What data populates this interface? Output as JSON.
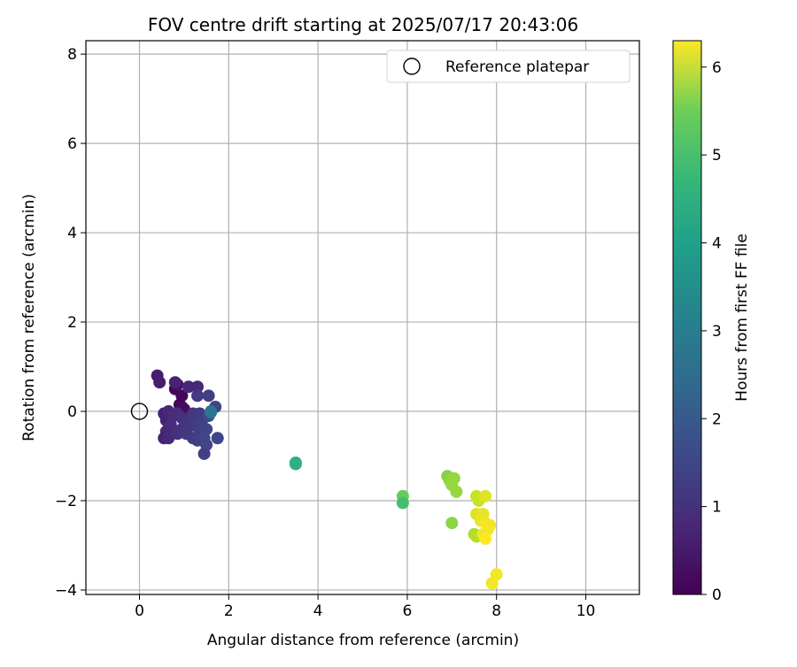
{
  "chart_data": {
    "type": "scatter",
    "title": "FOV centre drift starting at 2025/07/17 20:43:06",
    "xlabel": "Angular distance from reference (arcmin)",
    "ylabel": "Rotation from reference (arcmin)",
    "xlim": [
      -1.2,
      11.2
    ],
    "ylim": [
      -4.1,
      8.3
    ],
    "xticks": [
      0,
      2,
      4,
      6,
      8,
      10
    ],
    "yticks": [
      -4,
      -2,
      0,
      2,
      4,
      6,
      8
    ],
    "grid": true,
    "legend": {
      "placement": "top-right",
      "entries": [
        "Reference platepar"
      ]
    },
    "reference_point": {
      "name": "Reference platepar",
      "x": 0,
      "y": 0,
      "marker": "open-circle"
    },
    "colorbar": {
      "label": "Hours from first FF file",
      "range": [
        0,
        6.3
      ],
      "ticks": [
        0,
        1,
        2,
        3,
        4,
        5,
        6
      ],
      "colormap": "viridis"
    },
    "points": [
      {
        "x": 0.8,
        "y": 0.5,
        "c": 0.05
      },
      {
        "x": 0.95,
        "y": 0.35,
        "c": 0.1
      },
      {
        "x": 0.9,
        "y": 0.15,
        "c": 0.1
      },
      {
        "x": 0.95,
        "y": 0.1,
        "c": 0.15
      },
      {
        "x": 1.0,
        "y": 0.05,
        "c": 0.2
      },
      {
        "x": 0.85,
        "y": 0.6,
        "c": 0.3
      },
      {
        "x": 0.4,
        "y": 0.8,
        "c": 0.5
      },
      {
        "x": 0.45,
        "y": 0.65,
        "c": 0.5
      },
      {
        "x": 0.8,
        "y": 0.65,
        "c": 0.6
      },
      {
        "x": 1.1,
        "y": 0.55,
        "c": 0.7
      },
      {
        "x": 1.3,
        "y": 0.55,
        "c": 0.7
      },
      {
        "x": 0.55,
        "y": -0.05,
        "c": 0.6
      },
      {
        "x": 0.6,
        "y": -0.2,
        "c": 0.6
      },
      {
        "x": 0.65,
        "y": 0.0,
        "c": 0.7
      },
      {
        "x": 0.75,
        "y": -0.1,
        "c": 0.8
      },
      {
        "x": 0.85,
        "y": -0.05,
        "c": 0.8
      },
      {
        "x": 0.95,
        "y": -0.15,
        "c": 0.9
      },
      {
        "x": 0.7,
        "y": -0.3,
        "c": 0.8
      },
      {
        "x": 0.6,
        "y": -0.45,
        "c": 0.7
      },
      {
        "x": 0.55,
        "y": -0.6,
        "c": 0.6
      },
      {
        "x": 0.65,
        "y": -0.6,
        "c": 0.7
      },
      {
        "x": 0.8,
        "y": -0.45,
        "c": 0.8
      },
      {
        "x": 0.85,
        "y": -0.5,
        "c": 0.9
      },
      {
        "x": 0.95,
        "y": -0.4,
        "c": 0.9
      },
      {
        "x": 1.05,
        "y": -0.5,
        "c": 1.0
      },
      {
        "x": 1.1,
        "y": -0.35,
        "c": 1.0
      },
      {
        "x": 1.15,
        "y": -0.2,
        "c": 1.0
      },
      {
        "x": 1.2,
        "y": -0.05,
        "c": 1.0
      },
      {
        "x": 1.25,
        "y": -0.3,
        "c": 1.1
      },
      {
        "x": 1.2,
        "y": -0.6,
        "c": 1.1
      },
      {
        "x": 1.3,
        "y": -0.65,
        "c": 1.2
      },
      {
        "x": 1.35,
        "y": -0.45,
        "c": 1.2
      },
      {
        "x": 1.4,
        "y": -0.2,
        "c": 1.2
      },
      {
        "x": 1.35,
        "y": -0.05,
        "c": 1.1
      },
      {
        "x": 1.3,
        "y": 0.35,
        "c": 1.1
      },
      {
        "x": 1.55,
        "y": 0.35,
        "c": 1.2
      },
      {
        "x": 1.5,
        "y": -0.4,
        "c": 1.3
      },
      {
        "x": 1.45,
        "y": -0.6,
        "c": 1.3
      },
      {
        "x": 1.5,
        "y": -0.75,
        "c": 1.3
      },
      {
        "x": 1.45,
        "y": -0.95,
        "c": 1.2
      },
      {
        "x": 1.75,
        "y": -0.6,
        "c": 1.3
      },
      {
        "x": 1.7,
        "y": 0.1,
        "c": 1.3
      },
      {
        "x": 1.55,
        "y": -0.1,
        "c": 1.4
      },
      {
        "x": 1.6,
        "y": 0.0,
        "c": 2.3
      },
      {
        "x": 1.6,
        "y": -0.02,
        "c": 2.5
      },
      {
        "x": 3.5,
        "y": -1.15,
        "c": 3.9
      },
      {
        "x": 3.5,
        "y": -1.18,
        "c": 4.0
      },
      {
        "x": 5.9,
        "y": -1.9,
        "c": 4.8
      },
      {
        "x": 5.9,
        "y": -2.05,
        "c": 4.4
      },
      {
        "x": 6.9,
        "y": -1.45,
        "c": 5.1
      },
      {
        "x": 6.95,
        "y": -1.55,
        "c": 5.2
      },
      {
        "x": 7.0,
        "y": -1.65,
        "c": 5.3
      },
      {
        "x": 7.05,
        "y": -1.5,
        "c": 5.3
      },
      {
        "x": 7.1,
        "y": -1.8,
        "c": 5.3
      },
      {
        "x": 7.0,
        "y": -2.5,
        "c": 5.2
      },
      {
        "x": 7.5,
        "y": -2.75,
        "c": 5.5
      },
      {
        "x": 7.55,
        "y": -2.8,
        "c": 5.6
      },
      {
        "x": 7.55,
        "y": -1.9,
        "c": 5.8
      },
      {
        "x": 7.6,
        "y": -2.0,
        "c": 5.8
      },
      {
        "x": 7.75,
        "y": -1.9,
        "c": 6.0
      },
      {
        "x": 7.55,
        "y": -2.3,
        "c": 6.0
      },
      {
        "x": 7.7,
        "y": -2.3,
        "c": 6.1
      },
      {
        "x": 7.65,
        "y": -2.45,
        "c": 6.1
      },
      {
        "x": 7.75,
        "y": -2.5,
        "c": 6.2
      },
      {
        "x": 7.85,
        "y": -2.55,
        "c": 6.2
      },
      {
        "x": 7.8,
        "y": -2.65,
        "c": 6.2
      },
      {
        "x": 7.7,
        "y": -2.75,
        "c": 6.2
      },
      {
        "x": 7.75,
        "y": -2.85,
        "c": 6.3
      },
      {
        "x": 7.9,
        "y": -3.85,
        "c": 6.2
      },
      {
        "x": 8.0,
        "y": -3.65,
        "c": 6.2
      }
    ]
  }
}
